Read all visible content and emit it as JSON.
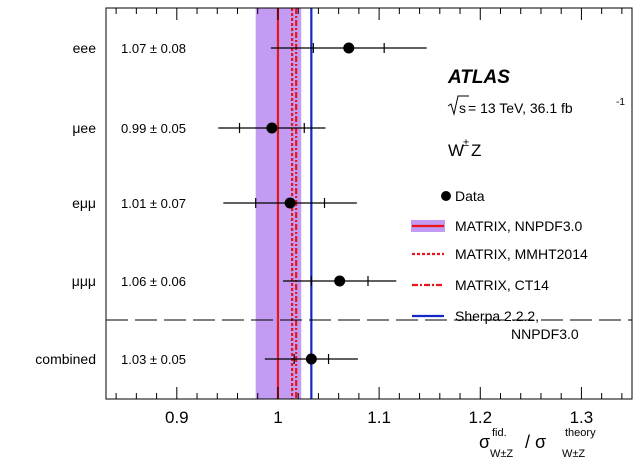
{
  "chart_data": {
    "type": "scatter",
    "x_range": [
      0.83,
      1.35
    ],
    "x_ticks": [
      "0.9",
      "1",
      "1.1",
      "1.2",
      "1.3"
    ],
    "x_tick_values": [
      0.9,
      1.0,
      1.1,
      1.2,
      1.3
    ],
    "xlabel": {
      "main": "σ",
      "sup1": "fid.",
      "sub1": "W±Z",
      "sep": " / σ",
      "sup2": "theory",
      "sub2": "W±Z"
    },
    "grid": false,
    "channels": [
      {
        "label": "eee",
        "text": "1.07 ± 0.08",
        "value": 1.07,
        "stat": 0.035,
        "total": 0.077
      },
      {
        "label": "μee",
        "text": "0.99 ± 0.05",
        "value": 0.994,
        "stat": 0.032,
        "total": 0.053
      },
      {
        "label": "eμμ",
        "text": "1.01 ± 0.07",
        "value": 1.012,
        "stat": 0.034,
        "total": 0.066
      },
      {
        "label": "μμμ",
        "text": "1.06 ± 0.06",
        "value": 1.061,
        "stat": 0.028,
        "total": 0.056
      },
      {
        "label": "combined",
        "text": "1.03 ± 0.05",
        "value": 1.033,
        "stat": 0.017,
        "total": 0.046
      }
    ],
    "theory_band": {
      "low": 0.978,
      "high": 1.023,
      "color": "#c39bf2"
    },
    "theory_lines": [
      {
        "name": "MATRIX, NNPDF3.0",
        "x": 1.0,
        "color": "#e8151b",
        "style": "solid"
      },
      {
        "name": "MATRIX, MMHT2014",
        "x": 1.014,
        "color": "#e8151b",
        "style": "dotted"
      },
      {
        "name": "MATRIX, CT14",
        "x": 1.018,
        "color": "#e8151b",
        "style": "dashdot"
      },
      {
        "name_line1": "Sherpa 2.2.2,",
        "name_line2": "NNPDF3.0",
        "x": 1.033,
        "color": "#1428c8",
        "style": "solid"
      }
    ],
    "legend": {
      "data_label": "Data",
      "position": "right"
    },
    "annotations": {
      "experiment": "ATLAS",
      "sqrt_s": "s",
      "energy": " = 13 TeV, 36.1 fb",
      "lumi_exp": "-1",
      "process_main": "W",
      "process_sup": "±",
      "process_end": "Z"
    }
  }
}
